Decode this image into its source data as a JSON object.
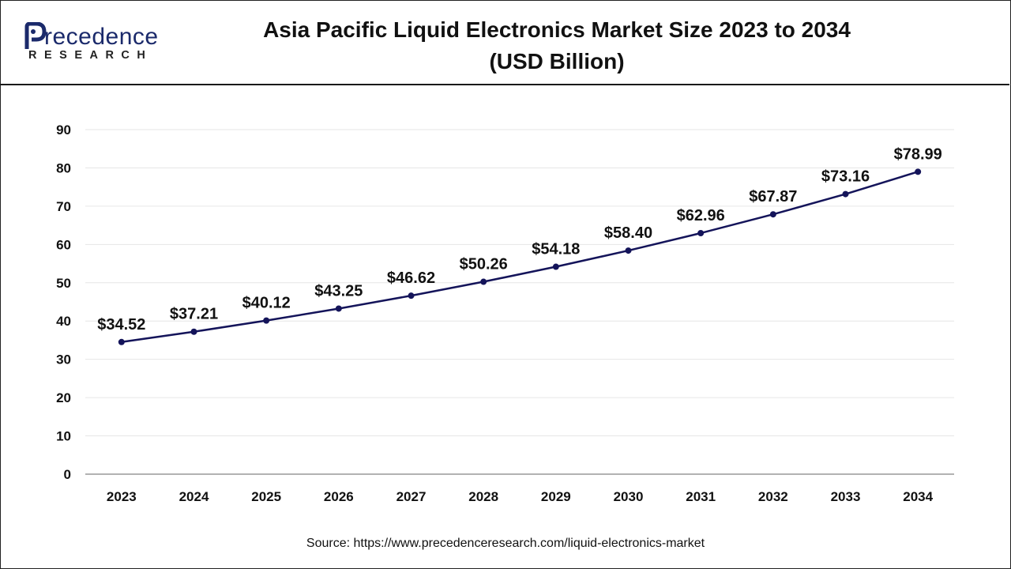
{
  "header": {
    "logo_word": "recedence",
    "logo_sub": "RESEARCH",
    "title_line1": "Asia Pacific Liquid Electronics Market Size 2023 to 2034",
    "title_line2": "(USD Billion)"
  },
  "source": "Source: https://www.precedenceresearch.com/liquid-electronics-market",
  "colors": {
    "line": "#14145a",
    "grid": "#e6e6e6",
    "axis": "#999999",
    "brand": "#1b2a6b"
  },
  "chart_data": {
    "type": "line",
    "title": "Asia Pacific Liquid Electronics Market Size 2023 to 2034 (USD Billion)",
    "xlabel": "",
    "ylabel": "",
    "categories": [
      "2023",
      "2024",
      "2025",
      "2026",
      "2027",
      "2028",
      "2029",
      "2030",
      "2031",
      "2032",
      "2033",
      "2034"
    ],
    "series": [
      {
        "values": [
          34.52,
          37.21,
          40.12,
          43.25,
          46.62,
          50.26,
          54.18,
          58.4,
          62.96,
          67.87,
          73.16,
          78.99
        ],
        "labels": [
          "$34.52",
          "$37.21",
          "$40.12",
          "$43.25",
          "$46.62",
          "$50.26",
          "$54.18",
          "$58.40",
          "$62.96",
          "$67.87",
          "$73.16",
          "$78.99"
        ]
      }
    ],
    "ylim": [
      0,
      90
    ],
    "yticks": [
      0,
      10,
      20,
      30,
      40,
      50,
      60,
      70,
      80,
      90
    ],
    "grid": true,
    "legend": "none"
  }
}
